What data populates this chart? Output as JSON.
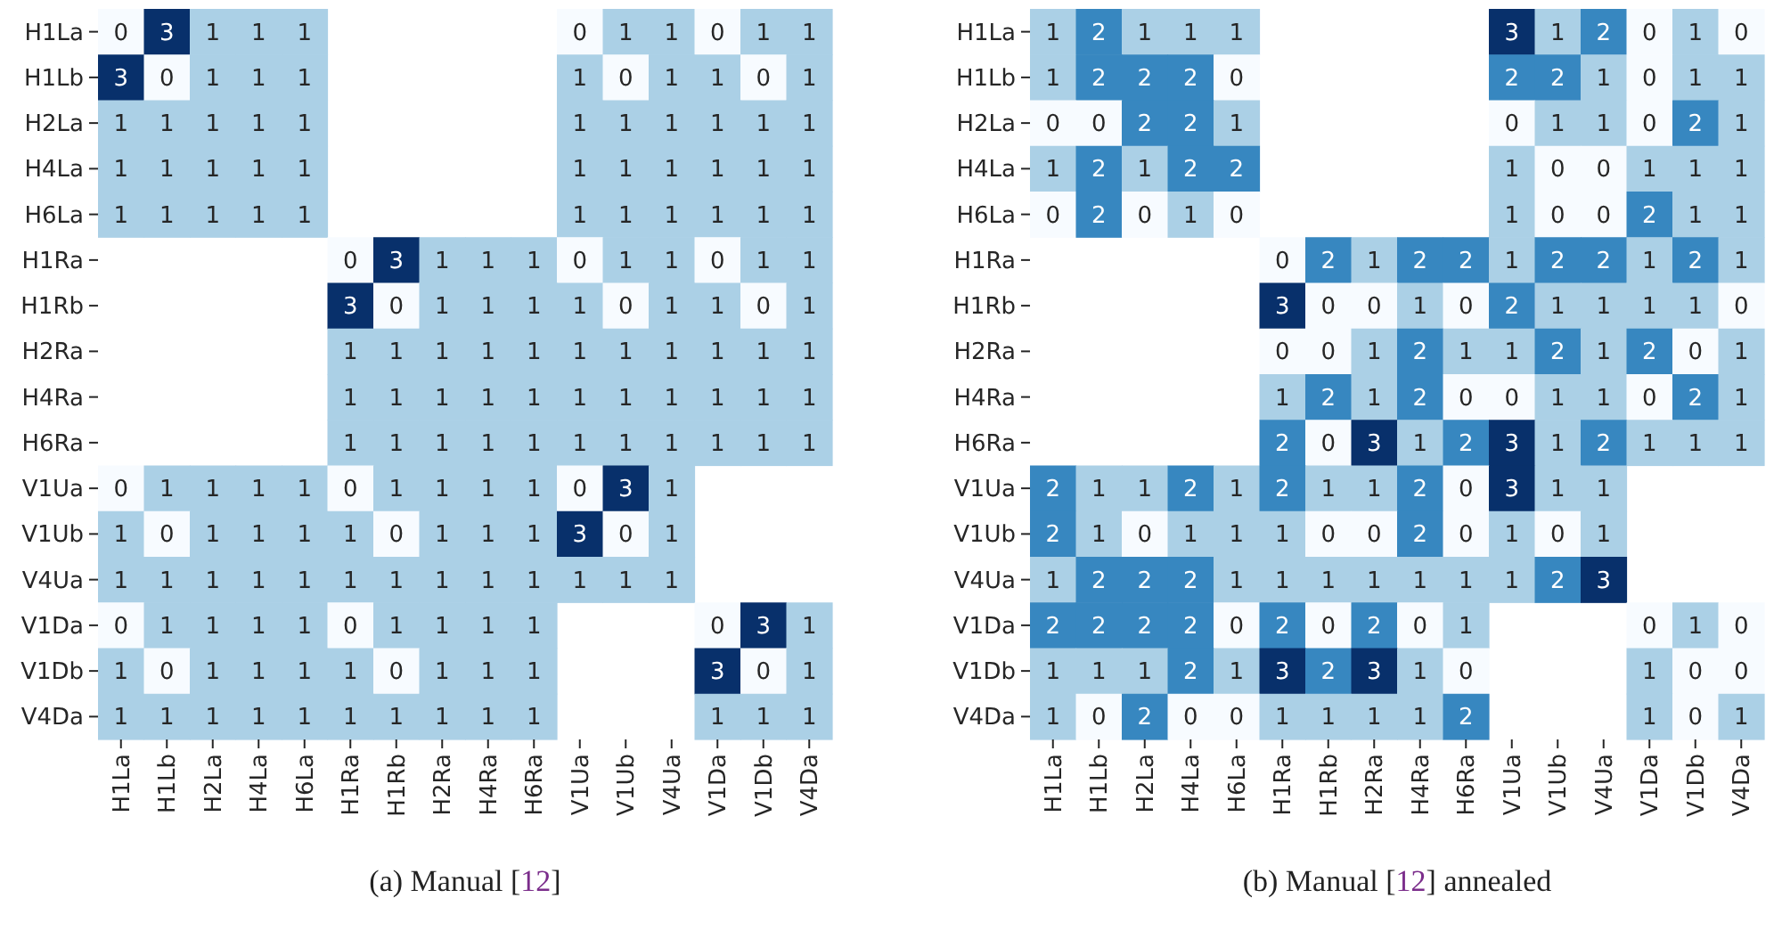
{
  "chart_data": [
    {
      "type": "heatmap",
      "title": "(a) Manual [12]",
      "categories": [
        "H1La",
        "H1Lb",
        "H2La",
        "H4La",
        "H6La",
        "H1Ra",
        "H1Rb",
        "H2Ra",
        "H4Ra",
        "H6Ra",
        "V1Ua",
        "V1Ub",
        "V4Ua",
        "V1Da",
        "V1Db",
        "V4Da"
      ],
      "y_categories": [
        "H1La",
        "H1Lb",
        "H2La",
        "H4La",
        "H6La",
        "H1Ra",
        "H1Rb",
        "H2Ra",
        "H4Ra",
        "H6Ra",
        "V1Ua",
        "V1Ub",
        "V4Ua",
        "V1Da",
        "V1Db",
        "V4Da"
      ],
      "cells": [
        [
          0,
          3,
          1,
          1,
          1,
          null,
          null,
          null,
          null,
          null,
          0,
          1,
          1,
          0,
          1,
          1
        ],
        [
          3,
          0,
          1,
          1,
          1,
          null,
          null,
          null,
          null,
          null,
          1,
          0,
          1,
          1,
          0,
          1
        ],
        [
          1,
          1,
          1,
          1,
          1,
          null,
          null,
          null,
          null,
          null,
          1,
          1,
          1,
          1,
          1,
          1
        ],
        [
          1,
          1,
          1,
          1,
          1,
          null,
          null,
          null,
          null,
          null,
          1,
          1,
          1,
          1,
          1,
          1
        ],
        [
          1,
          1,
          1,
          1,
          1,
          null,
          null,
          null,
          null,
          null,
          1,
          1,
          1,
          1,
          1,
          1
        ],
        [
          null,
          null,
          null,
          null,
          null,
          0,
          3,
          1,
          1,
          1,
          0,
          1,
          1,
          0,
          1,
          1
        ],
        [
          null,
          null,
          null,
          null,
          null,
          3,
          0,
          1,
          1,
          1,
          1,
          0,
          1,
          1,
          0,
          1
        ],
        [
          null,
          null,
          null,
          null,
          null,
          1,
          1,
          1,
          1,
          1,
          1,
          1,
          1,
          1,
          1,
          1
        ],
        [
          null,
          null,
          null,
          null,
          null,
          1,
          1,
          1,
          1,
          1,
          1,
          1,
          1,
          1,
          1,
          1
        ],
        [
          null,
          null,
          null,
          null,
          null,
          1,
          1,
          1,
          1,
          1,
          1,
          1,
          1,
          1,
          1,
          1
        ],
        [
          0,
          1,
          1,
          1,
          1,
          0,
          1,
          1,
          1,
          1,
          0,
          3,
          1,
          null,
          null,
          null
        ],
        [
          1,
          0,
          1,
          1,
          1,
          1,
          0,
          1,
          1,
          1,
          3,
          0,
          1,
          null,
          null,
          null
        ],
        [
          1,
          1,
          1,
          1,
          1,
          1,
          1,
          1,
          1,
          1,
          1,
          1,
          1,
          null,
          null,
          null
        ],
        [
          0,
          1,
          1,
          1,
          1,
          0,
          1,
          1,
          1,
          1,
          null,
          null,
          null,
          0,
          3,
          1
        ],
        [
          1,
          0,
          1,
          1,
          1,
          1,
          0,
          1,
          1,
          1,
          null,
          null,
          null,
          3,
          0,
          1
        ],
        [
          1,
          1,
          1,
          1,
          1,
          1,
          1,
          1,
          1,
          1,
          null,
          null,
          null,
          1,
          1,
          1
        ]
      ],
      "data_labels": true
    },
    {
      "type": "heatmap",
      "title": "(b) Manual [12] annealed",
      "categories": [
        "H1La",
        "H1Lb",
        "H2La",
        "H4La",
        "H6La",
        "H1Ra",
        "H1Rb",
        "H2Ra",
        "H4Ra",
        "H6Ra",
        "V1Ua",
        "V1Ub",
        "V4Ua",
        "V1Da",
        "V1Db",
        "V4Da"
      ],
      "y_categories": [
        "H1La",
        "H1Lb",
        "H2La",
        "H4La",
        "H6La",
        "H1Ra",
        "H1Rb",
        "H2Ra",
        "H4Ra",
        "H6Ra",
        "V1Ua",
        "V1Ub",
        "V4Ua",
        "V1Da",
        "V1Db",
        "V4Da"
      ],
      "cells": [
        [
          1,
          2,
          1,
          1,
          1,
          null,
          null,
          null,
          null,
          null,
          3,
          1,
          2,
          0,
          1,
          0
        ],
        [
          1,
          2,
          2,
          2,
          0,
          null,
          null,
          null,
          null,
          null,
          2,
          2,
          1,
          0,
          1,
          1
        ],
        [
          0,
          0,
          2,
          2,
          1,
          null,
          null,
          null,
          null,
          null,
          0,
          1,
          1,
          0,
          2,
          1
        ],
        [
          1,
          2,
          1,
          2,
          2,
          null,
          null,
          null,
          null,
          null,
          1,
          0,
          0,
          1,
          1,
          1
        ],
        [
          0,
          2,
          0,
          1,
          0,
          null,
          null,
          null,
          null,
          null,
          1,
          0,
          0,
          2,
          1,
          1
        ],
        [
          null,
          null,
          null,
          null,
          null,
          0,
          2,
          1,
          2,
          2,
          1,
          2,
          2,
          1,
          2,
          1
        ],
        [
          null,
          null,
          null,
          null,
          null,
          3,
          0,
          0,
          1,
          0,
          2,
          1,
          1,
          1,
          1,
          0
        ],
        [
          null,
          null,
          null,
          null,
          null,
          0,
          0,
          1,
          2,
          1,
          1,
          2,
          1,
          2,
          0,
          1
        ],
        [
          null,
          null,
          null,
          null,
          null,
          1,
          2,
          1,
          2,
          0,
          0,
          1,
          1,
          0,
          2,
          1
        ],
        [
          null,
          null,
          null,
          null,
          null,
          2,
          0,
          3,
          1,
          2,
          3,
          1,
          2,
          1,
          1,
          1
        ],
        [
          2,
          1,
          1,
          2,
          1,
          2,
          1,
          1,
          2,
          0,
          3,
          1,
          1,
          null,
          null,
          null
        ],
        [
          2,
          1,
          0,
          1,
          1,
          1,
          0,
          0,
          2,
          0,
          1,
          0,
          1,
          null,
          null,
          null
        ],
        [
          1,
          2,
          2,
          2,
          1,
          1,
          1,
          1,
          1,
          1,
          1,
          2,
          3,
          null,
          null,
          null
        ],
        [
          2,
          2,
          2,
          2,
          0,
          2,
          0,
          2,
          0,
          1,
          null,
          null,
          null,
          0,
          1,
          0
        ],
        [
          1,
          1,
          1,
          2,
          1,
          3,
          2,
          3,
          1,
          0,
          null,
          null,
          null,
          1,
          0,
          0
        ],
        [
          1,
          0,
          2,
          0,
          0,
          1,
          1,
          1,
          1,
          2,
          null,
          null,
          null,
          1,
          0,
          1
        ]
      ],
      "data_labels": true
    }
  ]
}
